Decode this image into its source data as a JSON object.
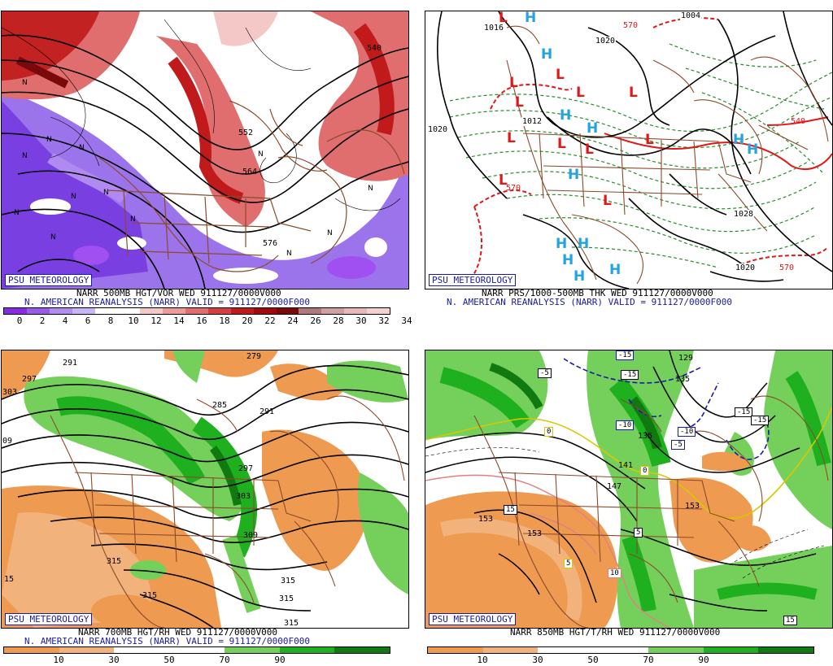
{
  "branding": "PSU METEOROLOGY",
  "panels": [
    {
      "id": "p1",
      "caption1": "NARR 500MB HGT/VOR WED 911127/0000V000",
      "caption2": "N. AMERICAN REANALYSIS (NARR) VALID = 911127/0000F000",
      "colorbar": {
        "colors": [
          "#8a2be2",
          "#9d5ae8",
          "#b38cf0",
          "#c8b6f5",
          "#ffffff",
          "#ffffff",
          "#f5c8c8",
          "#ee9a9a",
          "#e06e6e",
          "#d44040",
          "#c01a1a",
          "#a00a0a",
          "#7a0a0a",
          "#b07a7a",
          "#d0a0a0",
          "#e8b8b8",
          "#f5d0d0"
        ],
        "ticks": [
          "0",
          "2",
          "4",
          "6",
          "8",
          "10",
          "12",
          "14",
          "16",
          "18",
          "20",
          "22",
          "24",
          "26",
          "28",
          "30",
          "32",
          "34"
        ]
      },
      "contour_labels": [
        "540",
        "552",
        "564",
        "576"
      ]
    },
    {
      "id": "p2",
      "caption1": "NARR PRS/1000-500MB THK WED 911127/0000V000",
      "caption2": "N. AMERICAN REANALYSIS (NARR) VALID = 911127/0000F000",
      "contour_labels": [
        "1016",
        "1004",
        "1020",
        "1012",
        "1028",
        "1020",
        "1020",
        "570",
        "540",
        "570",
        "570"
      ],
      "pressure_centers": [
        "H",
        "H",
        "H",
        "H",
        "H",
        "H",
        "H",
        "H",
        "H",
        "H",
        "H",
        "H",
        "L",
        "L",
        "L",
        "L",
        "L",
        "L",
        "L",
        "L",
        "L",
        "L",
        "L",
        "L"
      ]
    },
    {
      "id": "p3",
      "caption1": "NARR 700MB HGT/RH WED 911127/0000V000",
      "caption2": "N. AMERICAN REANALYSIS (NARR) VALID = 911127/0000F000",
      "colorbar": {
        "colors": [
          "#ee9a50",
          "#f2b27c",
          "#ffffff",
          "#ffffff",
          "#74d05a",
          "#1fb01f",
          "#107a10"
        ],
        "ticks": [
          "10",
          "30",
          "50",
          "70",
          "90"
        ]
      },
      "contour_labels": [
        "297",
        "303",
        "291",
        "279",
        "285",
        "291",
        "297",
        "303",
        "309",
        "315",
        "315",
        "315",
        "315",
        "315",
        "09",
        "15"
      ]
    },
    {
      "id": "p4",
      "caption1": "NARR 850MB HGT/T/RH WED 911127/0000V000",
      "colorbar": {
        "colors": [
          "#ee9a50",
          "#f2b27c",
          "#ffffff",
          "#ffffff",
          "#74d05a",
          "#1fb01f",
          "#107a10"
        ],
        "ticks": [
          "10",
          "30",
          "50",
          "70",
          "90"
        ]
      },
      "contour_labels": [
        "129",
        "135",
        "135",
        "141",
        "147",
        "153",
        "153",
        "153"
      ],
      "temp_boxes": [
        "-15",
        "-5",
        "-15",
        "-10",
        "-10",
        "-5",
        "-15",
        "-15",
        "0",
        "0",
        "15",
        "5",
        "10",
        "15",
        "5"
      ]
    }
  ]
}
